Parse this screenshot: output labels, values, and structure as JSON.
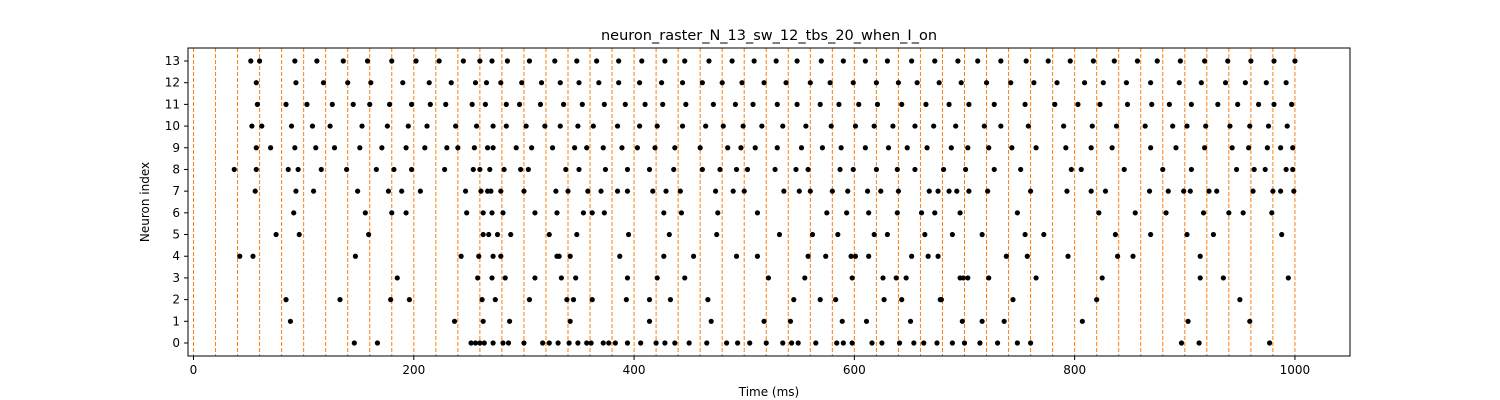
{
  "chart_data": {
    "type": "scatter",
    "title": "neuron_raster_N_13_sw_12_tbs_20_when_I_on",
    "xlabel": "Time (ms)",
    "ylabel": "Neuron index",
    "xlim": [
      -5,
      1050
    ],
    "ylim": [
      -0.6,
      13.6
    ],
    "xticks": [
      0,
      200,
      400,
      600,
      800,
      1000
    ],
    "yticks": [
      0,
      1,
      2,
      3,
      4,
      5,
      6,
      7,
      8,
      9,
      10,
      11,
      12,
      13
    ],
    "grid": false,
    "marker_color": "#000000",
    "vline_color": "#ff7f0e",
    "stimulus_lines": {
      "x": [
        0,
        20,
        40,
        60,
        80,
        100,
        120,
        140,
        160,
        180,
        200,
        220,
        240,
        260,
        280,
        300,
        320,
        340,
        360,
        380,
        400,
        420,
        440,
        460,
        480,
        500,
        520,
        540,
        560,
        580,
        600,
        620,
        640,
        660,
        680,
        700,
        720,
        740,
        760,
        780,
        800,
        820,
        840,
        860,
        880,
        900,
        920,
        940,
        960,
        980,
        1000
      ],
      "style": "dashed"
    },
    "series": [
      {
        "neuron": 0,
        "spike_times": [
          146,
          167,
          252,
          256,
          260,
          264,
          272,
          281,
          286,
          300,
          317,
          323,
          331,
          341,
          349,
          357,
          361,
          372,
          377,
          383,
          394,
          406,
          420,
          428,
          437,
          450,
          466,
          484,
          494,
          505,
          520,
          535,
          543,
          549,
          565,
          584,
          590,
          598,
          616,
          625,
          641,
          654,
          663,
          675,
          689,
          700,
          714,
          730,
          748,
          760,
          897,
          913,
          977
        ]
      },
      {
        "neuron": 1,
        "spike_times": [
          88,
          237,
          263,
          287,
          342,
          414,
          470,
          518,
          542,
          589,
          611,
          651,
          698,
          716,
          736,
          807,
          903,
          959
        ]
      },
      {
        "neuron": 2,
        "spike_times": [
          84,
          133,
          179,
          196,
          262,
          274,
          305,
          339,
          345,
          362,
          393,
          414,
          433,
          467,
          545,
          569,
          583,
          627,
          643,
          678,
          679,
          744,
          820,
          950
        ]
      },
      {
        "neuron": 3,
        "spike_times": [
          185,
          258,
          271,
          283,
          310,
          334,
          347,
          394,
          421,
          446,
          522,
          555,
          598,
          626,
          638,
          647,
          696,
          699,
          703,
          722,
          765,
          825,
          914,
          935,
          994
        ]
      },
      {
        "neuron": 4,
        "spike_times": [
          42,
          54,
          147,
          243,
          259,
          272,
          279,
          330,
          332,
          342,
          387,
          427,
          454,
          493,
          512,
          558,
          574,
          597,
          601,
          613,
          652,
          667,
          676,
          738,
          757,
          794,
          839,
          853,
          914
        ]
      },
      {
        "neuron": 5,
        "spike_times": [
          75,
          96,
          159,
          263,
          268,
          276,
          288,
          323,
          348,
          395,
          432,
          475,
          532,
          562,
          585,
          618,
          630,
          664,
          689,
          716,
          755,
          772,
          837,
          869,
          902,
          926,
          988
        ]
      },
      {
        "neuron": 6,
        "spike_times": [
          91,
          156,
          180,
          193,
          248,
          263,
          271,
          281,
          310,
          330,
          354,
          362,
          373,
          427,
          443,
          476,
          512,
          575,
          593,
          613,
          639,
          661,
          673,
          696,
          748,
          822,
          855,
          883,
          917,
          940,
          953,
          979
        ]
      },
      {
        "neuron": 7,
        "spike_times": [
          56,
          93,
          109,
          149,
          177,
          189,
          206,
          247,
          261,
          267,
          270,
          279,
          300,
          329,
          340,
          358,
          370,
          385,
          394,
          417,
          429,
          442,
          474,
          490,
          500,
          536,
          550,
          560,
          580,
          594,
          612,
          624,
          640,
          668,
          676,
          686,
          693,
          704,
          721,
          760,
          793,
          815,
          828,
          868,
          885,
          899,
          905,
          922,
          929,
          962,
          980,
          987,
          999
        ]
      },
      {
        "neuron": 8,
        "spike_times": [
          37,
          57,
          86,
          95,
          116,
          139,
          166,
          182,
          198,
          228,
          254,
          260,
          269,
          282,
          297,
          304,
          338,
          350,
          374,
          394,
          414,
          436,
          462,
          478,
          493,
          503,
          528,
          547,
          558,
          587,
          599,
          620,
          639,
          655,
          681,
          701,
          727,
          751,
          797,
          806,
          845,
          880,
          906,
          947,
          963,
          973,
          992,
          998
        ]
      },
      {
        "neuron": 9,
        "spike_times": [
          57,
          70,
          92,
          111,
          128,
          151,
          171,
          193,
          210,
          230,
          240,
          255,
          267,
          272,
          293,
          307,
          326,
          346,
          357,
          372,
          389,
          403,
          419,
          437,
          460,
          485,
          497,
          510,
          530,
          552,
          571,
          588,
          610,
          631,
          648,
          666,
          688,
          703,
          722,
          743,
          765,
          792,
          815,
          834,
          869,
          892,
          918,
          943,
          958,
          975,
          987,
          998
        ]
      },
      {
        "neuron": 10,
        "spike_times": [
          53,
          62,
          89,
          108,
          124,
          153,
          176,
          195,
          212,
          238,
          257,
          272,
          284,
          302,
          319,
          333,
          349,
          363,
          385,
          405,
          421,
          444,
          465,
          481,
          499,
          516,
          535,
          556,
          579,
          601,
          618,
          635,
          655,
          672,
          692,
          718,
          733,
          758,
          790,
          816,
          838,
          864,
          889,
          902,
          919,
          941,
          959,
          976,
          993
        ]
      },
      {
        "neuron": 11,
        "spike_times": [
          58,
          84,
          103,
          126,
          145,
          160,
          178,
          198,
          215,
          229,
          253,
          265,
          284,
          296,
          315,
          336,
          353,
          373,
          392,
          410,
          426,
          447,
          472,
          492,
          508,
          530,
          548,
          569,
          586,
          604,
          621,
          643,
          665,
          686,
          704,
          727,
          755,
          782,
          803,
          823,
          848,
          870,
          886,
          906,
          930,
          948,
          967,
          981,
          997
        ]
      },
      {
        "neuron": 12,
        "spike_times": [
          57,
          93,
          118,
          140,
          161,
          190,
          214,
          234,
          256,
          266,
          279,
          298,
          316,
          333,
          350,
          368,
          386,
          405,
          425,
          444,
          462,
          480,
          498,
          518,
          538,
          560,
          578,
          599,
          620,
          640,
          657,
          677,
          697,
          720,
          742,
          763,
          784,
          809,
          826,
          847,
          869,
          895,
          915,
          937,
          955,
          974,
          992
        ]
      },
      {
        "neuron": 13,
        "spike_times": [
          52,
          60,
          92,
          112,
          136,
          158,
          180,
          202,
          223,
          245,
          260,
          271,
          285,
          305,
          328,
          348,
          366,
          386,
          407,
          428,
          446,
          468,
          489,
          509,
          529,
          548,
          570,
          590,
          610,
          630,
          652,
          673,
          694,
          712,
          733,
          756,
          776,
          796,
          817,
          836,
          857,
          875,
          896,
          918,
          939,
          960,
          981,
          1000
        ]
      }
    ]
  }
}
